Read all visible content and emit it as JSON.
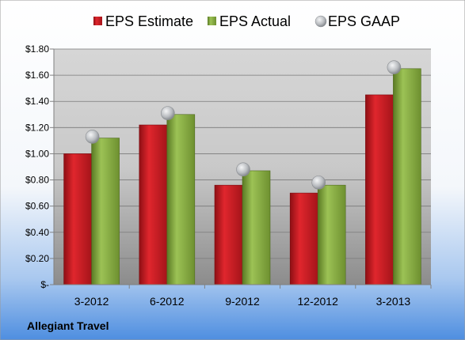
{
  "footer": {
    "company": "Allegiant Travel"
  },
  "chart_data": {
    "type": "bar",
    "categories": [
      "3-2012",
      "6-2012",
      "9-2012",
      "12-2012",
      "3-2013"
    ],
    "series": [
      {
        "name": "EPS Estimate",
        "values": [
          1.0,
          1.22,
          0.76,
          0.7,
          1.45
        ],
        "color": "#c0191f",
        "kind": "bar"
      },
      {
        "name": "EPS Actual",
        "values": [
          1.12,
          1.3,
          0.87,
          0.76,
          1.65
        ],
        "color": "#7fa23a",
        "kind": "bar"
      },
      {
        "name": "EPS GAAP",
        "values": [
          1.13,
          1.31,
          0.88,
          0.78,
          1.66
        ],
        "color": "#b5b8bc",
        "kind": "marker"
      }
    ],
    "y_tick_labels": [
      "$-",
      "$0.20",
      "$0.40",
      "$0.60",
      "$0.80",
      "$1.00",
      "$1.20",
      "$1.40",
      "$1.60",
      "$1.80"
    ],
    "ylim": [
      0,
      1.8
    ],
    "grid": true,
    "legend_position": "top"
  }
}
